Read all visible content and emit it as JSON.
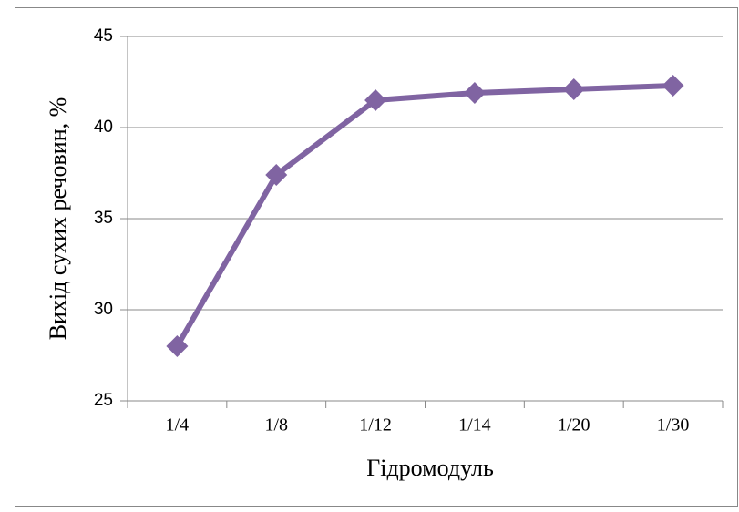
{
  "chart_data": {
    "type": "line",
    "x_label": "Гідромодуль",
    "y_label": "Вихід сухих речовин, %",
    "categories": [
      "1/4",
      "1/8",
      "1/12",
      "1/14",
      "1/20",
      "1/30"
    ],
    "series": [
      {
        "name": "Вихід сухих речовин",
        "color": "#8064a2",
        "values": [
          28,
          37.4,
          41.5,
          41.9,
          42.1,
          42.3
        ]
      }
    ],
    "ylim": [
      25,
      45
    ],
    "yticks": [
      25,
      30,
      35,
      40,
      45
    ],
    "grid": true,
    "legend": false
  }
}
